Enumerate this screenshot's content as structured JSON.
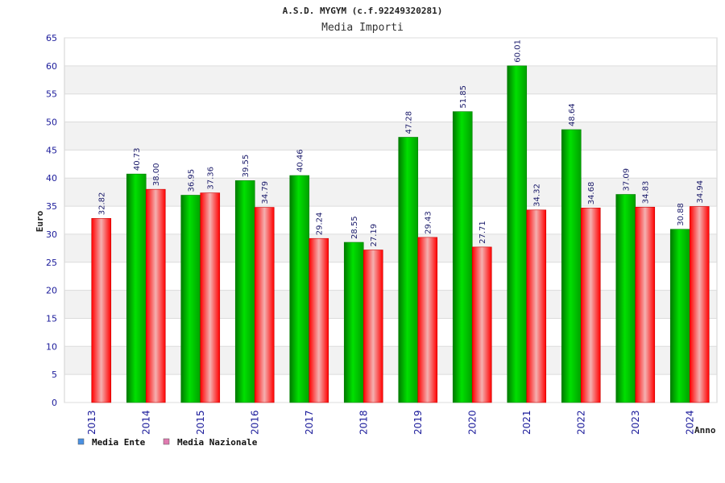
{
  "chart_data": {
    "type": "bar",
    "title": "A.S.D. MYGYM (c.f.92249320281)",
    "subtitle": "Media Importi",
    "ylabel": "Euro",
    "xlabel": "Anno",
    "ylim": [
      0,
      65
    ],
    "yticks": [
      0,
      5,
      10,
      15,
      20,
      25,
      30,
      35,
      40,
      45,
      50,
      55,
      60,
      65
    ],
    "categories": [
      "2013",
      "2014",
      "2015",
      "2016",
      "2017",
      "2018",
      "2019",
      "2020",
      "2021",
      "2022",
      "2023",
      "2024"
    ],
    "series": [
      {
        "name": "Media Ente",
        "color": "#00b000",
        "values": [
          null,
          40.73,
          36.95,
          39.55,
          40.46,
          28.55,
          47.28,
          51.85,
          60.01,
          48.64,
          37.09,
          30.88
        ],
        "labels": [
          "",
          "40.73",
          "36.95",
          "39.55",
          "40.46",
          "28.55",
          "47.28",
          "51.85",
          "60.01",
          "48.64",
          "37.09",
          "30.88"
        ]
      },
      {
        "name": "Media Nazionale",
        "color": "#ee1111",
        "values": [
          32.82,
          38.0,
          37.36,
          34.79,
          29.24,
          27.19,
          29.43,
          27.71,
          34.32,
          34.68,
          34.83,
          34.94
        ],
        "labels": [
          "32.82",
          "38.00",
          "37.36",
          "34.79",
          "29.24",
          "27.19",
          "29.43",
          "27.71",
          "34.32",
          "34.68",
          "34.83",
          "34.94"
        ]
      }
    ],
    "legend": [
      {
        "label": "Media Ente",
        "color": "#4a90e2"
      },
      {
        "label": "Media Nazionale",
        "color": "#e07ab0"
      }
    ],
    "grid": true,
    "legend_position": "bottom-left"
  }
}
